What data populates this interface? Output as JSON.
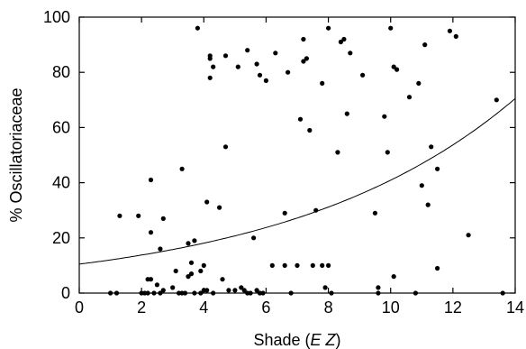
{
  "chart_data": {
    "type": "scatter",
    "xlabel": "Shade (E Z)",
    "xlabel_parts": [
      "Shade (",
      "E",
      " ",
      "Z",
      ")"
    ],
    "ylabel": "% Oscillatoriaceae",
    "xlim": [
      0,
      14
    ],
    "ylim": [
      0,
      100
    ],
    "xticks": [
      0,
      2,
      4,
      6,
      8,
      10,
      12,
      14
    ],
    "yticks": [
      0,
      20,
      40,
      60,
      80,
      100
    ],
    "grid": false,
    "legend": "none",
    "series": [
      {
        "values": [
          [
            1.0,
            0
          ],
          [
            1.2,
            0
          ],
          [
            1.3,
            28
          ],
          [
            1.9,
            28
          ],
          [
            2.0,
            0
          ],
          [
            2.1,
            0
          ],
          [
            2.2,
            0
          ],
          [
            2.2,
            5
          ],
          [
            2.3,
            5
          ],
          [
            2.3,
            41
          ],
          [
            2.3,
            22
          ],
          [
            2.4,
            0
          ],
          [
            2.5,
            3
          ],
          [
            2.6,
            16
          ],
          [
            2.6,
            0
          ],
          [
            2.7,
            27
          ],
          [
            2.7,
            1
          ],
          [
            3.0,
            2
          ],
          [
            3.1,
            8
          ],
          [
            3.2,
            0
          ],
          [
            3.3,
            45
          ],
          [
            3.3,
            0
          ],
          [
            3.4,
            0
          ],
          [
            3.5,
            6
          ],
          [
            3.5,
            18
          ],
          [
            3.6,
            7
          ],
          [
            3.6,
            11
          ],
          [
            3.7,
            19
          ],
          [
            3.7,
            0
          ],
          [
            3.8,
            96
          ],
          [
            3.9,
            8
          ],
          [
            3.9,
            0
          ],
          [
            4.0,
            10
          ],
          [
            4.0,
            1
          ],
          [
            4.1,
            33
          ],
          [
            4.1,
            1
          ],
          [
            4.2,
            86
          ],
          [
            4.2,
            85
          ],
          [
            4.2,
            78
          ],
          [
            4.3,
            82
          ],
          [
            4.3,
            0
          ],
          [
            4.5,
            31
          ],
          [
            4.6,
            5
          ],
          [
            4.7,
            53
          ],
          [
            4.7,
            86
          ],
          [
            4.8,
            1
          ],
          [
            5.0,
            1
          ],
          [
            5.1,
            82
          ],
          [
            5.2,
            2
          ],
          [
            5.3,
            1
          ],
          [
            5.4,
            0
          ],
          [
            5.4,
            88
          ],
          [
            5.5,
            0
          ],
          [
            5.6,
            20
          ],
          [
            5.7,
            83
          ],
          [
            5.7,
            1
          ],
          [
            5.8,
            79
          ],
          [
            5.8,
            0
          ],
          [
            5.9,
            0
          ],
          [
            6.0,
            77
          ],
          [
            6.2,
            10
          ],
          [
            6.3,
            87
          ],
          [
            6.6,
            29
          ],
          [
            6.6,
            10
          ],
          [
            6.7,
            80
          ],
          [
            6.8,
            0
          ],
          [
            7.0,
            10
          ],
          [
            7.1,
            63
          ],
          [
            7.2,
            92
          ],
          [
            7.2,
            84
          ],
          [
            7.3,
            85
          ],
          [
            7.4,
            59
          ],
          [
            7.5,
            10
          ],
          [
            7.6,
            30
          ],
          [
            7.8,
            76
          ],
          [
            7.8,
            10
          ],
          [
            7.9,
            2
          ],
          [
            8.0,
            96
          ],
          [
            8.0,
            10
          ],
          [
            8.1,
            0
          ],
          [
            8.3,
            51
          ],
          [
            8.4,
            91
          ],
          [
            8.5,
            92
          ],
          [
            8.6,
            65
          ],
          [
            8.7,
            87
          ],
          [
            9.1,
            79
          ],
          [
            9.5,
            29
          ],
          [
            9.6,
            2
          ],
          [
            9.6,
            0
          ],
          [
            9.8,
            64
          ],
          [
            9.9,
            51
          ],
          [
            10.0,
            96
          ],
          [
            10.1,
            82
          ],
          [
            10.1,
            6
          ],
          [
            10.2,
            81
          ],
          [
            10.6,
            71
          ],
          [
            10.8,
            0
          ],
          [
            10.9,
            76
          ],
          [
            11.0,
            39
          ],
          [
            11.1,
            90
          ],
          [
            11.2,
            32
          ],
          [
            11.3,
            53
          ],
          [
            11.5,
            45
          ],
          [
            11.5,
            9
          ],
          [
            11.9,
            95
          ],
          [
            12.1,
            93
          ],
          [
            12.5,
            21
          ],
          [
            13.4,
            70
          ],
          [
            13.6,
            0
          ]
        ]
      }
    ],
    "fit_curve": {
      "type": "exponential",
      "a": 10.5,
      "b": 0.136
    }
  }
}
